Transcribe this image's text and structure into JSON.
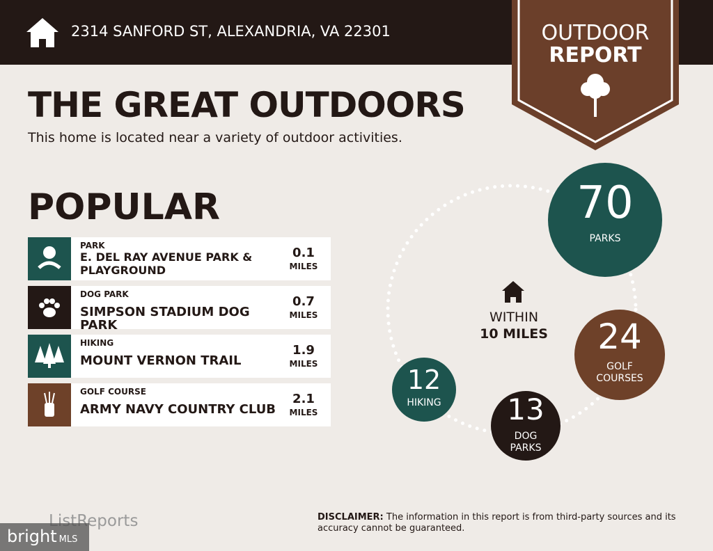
{
  "header": {
    "address": "2314 SANFORD ST, ALEXANDRIA, VA 22301"
  },
  "badge": {
    "line1": "OUTDOOR",
    "line2": "REPORT"
  },
  "title": "THE GREAT OUTDOORS",
  "subtitle": "This home is located near a variety of outdoor activities.",
  "popular": {
    "heading": "POPULAR",
    "items": [
      {
        "category": "PARK",
        "name": "E. DEL RAY AVENUE PARK & PLAYGROUND",
        "distance": 0.1,
        "unit": "MILES"
      },
      {
        "category": "DOG PARK",
        "name": "SIMPSON STADIUM DOG PARK",
        "distance": 0.7,
        "unit": "MILES"
      },
      {
        "category": "HIKING",
        "name": "MOUNT VERNON TRAIL",
        "distance": 1.9,
        "unit": "MILES"
      },
      {
        "category": "GOLF COURSE",
        "name": "ARMY NAVY COUNTRY CLUB",
        "distance": 2.1,
        "unit": "MILES"
      }
    ]
  },
  "within": {
    "line1": "WITHIN",
    "line2": "10 MILES"
  },
  "stats": [
    {
      "count": 70,
      "label": [
        "PARKS"
      ]
    },
    {
      "count": 24,
      "label": [
        "GOLF",
        "COURSES"
      ]
    },
    {
      "count": 13,
      "label": [
        "DOG",
        "PARKS"
      ]
    },
    {
      "count": 12,
      "label": [
        "HIKING"
      ]
    }
  ],
  "footer": {
    "logo": "ListReports",
    "disclaimer_label": "DISCLAIMER:",
    "disclaimer": "The information in this report is from third-party sources and its accuracy cannot be guaranteed.",
    "watermark": "bright",
    "watermark_suffix": "MLS"
  }
}
